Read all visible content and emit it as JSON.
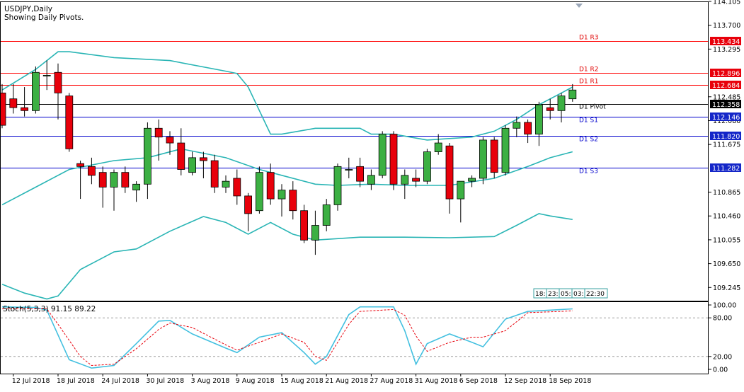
{
  "header": {
    "symbol_line": "USDJPY,Daily",
    "subtitle": "Showing Daily Pivots."
  },
  "price_axis": {
    "ticks": [
      114.105,
      113.7,
      113.295,
      112.485,
      112.08,
      111.675,
      110.865,
      110.46,
      110.055,
      109.65,
      109.245
    ],
    "range": [
      109.02,
      114.105
    ]
  },
  "pivots": [
    {
      "label": "D1 R3",
      "value": 113.434,
      "price_tag": "113.434",
      "color": "#ff0000"
    },
    {
      "label": "D1 R2",
      "value": 112.896,
      "price_tag": "112.896",
      "color": "#ff0000"
    },
    {
      "label": "D1 R1",
      "value": 112.684,
      "price_tag": "112.684",
      "color": "#ff0000"
    },
    {
      "label": "D1 Pivot",
      "value": 112.358,
      "price_tag": "112.358",
      "color": "#000000"
    },
    {
      "label": "D1 S1",
      "value": 112.146,
      "price_tag": "112.146",
      "color": "#0000cc"
    },
    {
      "label": "D1 S2",
      "value": 111.82,
      "price_tag": "111.820",
      "color": "#0000cc"
    },
    {
      "label": "D1 S3",
      "value": 111.282,
      "price_tag": "111.282",
      "color": "#0000cc"
    }
  ],
  "countdown": [
    "18:",
    "23:",
    "05:",
    "03:",
    "22:30"
  ],
  "stochastic": {
    "label": "Stoch(5,3,3) 91.15 89.22",
    "ticks": [
      "100.00",
      "80.00",
      "20.00",
      "0.00"
    ],
    "tick_values": [
      100,
      80,
      20,
      0
    ]
  },
  "date_labels": [
    {
      "text": "12 Jul 2018",
      "index": 1
    },
    {
      "text": "18 Jul 2018",
      "index": 5
    },
    {
      "text": "24 Jul 2018",
      "index": 9
    },
    {
      "text": "30 Jul 2018",
      "index": 13
    },
    {
      "text": "3 Aug 2018",
      "index": 17
    },
    {
      "text": "9 Aug 2018",
      "index": 21
    },
    {
      "text": "15 Aug 2018",
      "index": 25
    },
    {
      "text": "21 Aug 2018",
      "index": 29
    },
    {
      "text": "27 Aug 2018",
      "index": 33
    },
    {
      "text": "31 Aug 2018",
      "index": 37
    },
    {
      "text": "6 Sep 2018",
      "index": 41
    },
    {
      "text": "12 Sep 2018",
      "index": 45
    },
    {
      "text": "18 Sep 2018",
      "index": 49
    }
  ],
  "colors": {
    "bull": "#3cb043",
    "bear": "#e8000b",
    "band": "#2ab5b5",
    "stoch_main": "#43c0e0",
    "stoch_signal": "#e8000b",
    "pivot_tag_bg_red": "#e8000b",
    "pivot_tag_bg_blue": "#1426c8",
    "pivot_tag_bg_black": "#000000"
  },
  "chart_data": {
    "type": "candlestick",
    "series_name": "USDJPY",
    "ohlc": [
      [
        112.55,
        112.7,
        111.95,
        112.0
      ],
      [
        112.45,
        112.7,
        112.2,
        112.3
      ],
      [
        112.3,
        112.65,
        112.15,
        112.25
      ],
      [
        112.25,
        113.0,
        112.2,
        112.9
      ],
      [
        112.85,
        113.1,
        112.6,
        112.85
      ],
      [
        112.9,
        113.05,
        112.1,
        112.55
      ],
      [
        112.5,
        112.55,
        111.55,
        111.6
      ],
      [
        111.35,
        111.4,
        110.75,
        111.3
      ],
      [
        111.3,
        111.45,
        111.0,
        111.15
      ],
      [
        111.2,
        111.3,
        110.6,
        110.95
      ],
      [
        110.95,
        111.25,
        110.55,
        111.2
      ],
      [
        111.2,
        111.3,
        110.85,
        110.95
      ],
      [
        110.9,
        111.05,
        110.7,
        111.0
      ],
      [
        111.0,
        112.05,
        110.75,
        111.95
      ],
      [
        111.95,
        112.1,
        111.4,
        111.8
      ],
      [
        111.8,
        111.9,
        111.5,
        111.7
      ],
      [
        111.7,
        111.95,
        111.15,
        111.25
      ],
      [
        111.2,
        111.55,
        111.15,
        111.45
      ],
      [
        111.45,
        111.55,
        111.1,
        111.4
      ],
      [
        111.4,
        111.5,
        110.85,
        110.95
      ],
      [
        110.95,
        111.15,
        110.85,
        111.05
      ],
      [
        111.1,
        111.25,
        110.65,
        110.8
      ],
      [
        110.8,
        110.85,
        110.2,
        110.5
      ],
      [
        110.55,
        111.3,
        110.5,
        111.2
      ],
      [
        111.2,
        111.35,
        110.65,
        110.75
      ],
      [
        110.75,
        111.0,
        110.45,
        110.9
      ],
      [
        110.9,
        111.05,
        110.4,
        110.55
      ],
      [
        110.55,
        110.65,
        110.0,
        110.05
      ],
      [
        110.05,
        110.55,
        109.8,
        110.3
      ],
      [
        110.3,
        110.75,
        110.2,
        110.65
      ],
      [
        110.65,
        111.35,
        110.55,
        111.3
      ],
      [
        111.25,
        111.45,
        111.1,
        111.25
      ],
      [
        111.3,
        111.45,
        110.95,
        111.05
      ],
      [
        111.0,
        111.25,
        110.9,
        111.15
      ],
      [
        111.15,
        111.9,
        111.1,
        111.85
      ],
      [
        111.85,
        111.9,
        110.9,
        111.0
      ],
      [
        111.0,
        111.25,
        110.75,
        111.15
      ],
      [
        111.1,
        111.25,
        110.95,
        111.05
      ],
      [
        111.05,
        111.6,
        111.0,
        111.55
      ],
      [
        111.55,
        111.85,
        111.5,
        111.7
      ],
      [
        111.65,
        111.7,
        110.5,
        110.75
      ],
      [
        110.75,
        111.05,
        110.35,
        111.05
      ],
      [
        111.05,
        111.15,
        110.95,
        111.1
      ],
      [
        111.1,
        111.8,
        111.0,
        111.75
      ],
      [
        111.75,
        111.8,
        111.1,
        111.2
      ],
      [
        111.2,
        112.0,
        111.15,
        111.95
      ],
      [
        111.95,
        112.15,
        111.8,
        112.05
      ],
      [
        112.05,
        112.1,
        111.7,
        111.85
      ],
      [
        111.85,
        112.4,
        111.65,
        112.35
      ],
      [
        112.3,
        112.45,
        112.1,
        112.25
      ],
      [
        112.25,
        112.55,
        112.05,
        112.5
      ],
      [
        112.45,
        112.7,
        112.4,
        112.6
      ]
    ],
    "bollinger_upper": [
      [
        0,
        112.6
      ],
      [
        3,
        112.95
      ],
      [
        5,
        113.25
      ],
      [
        6,
        113.25
      ],
      [
        10,
        113.15
      ],
      [
        15,
        113.1
      ],
      [
        20,
        112.92
      ],
      [
        21,
        112.88
      ],
      [
        22,
        112.65
      ],
      [
        23,
        112.25
      ],
      [
        24,
        111.85
      ],
      [
        25,
        111.85
      ],
      [
        28,
        111.95
      ],
      [
        32,
        111.95
      ],
      [
        33,
        111.85
      ],
      [
        35,
        111.85
      ],
      [
        38,
        111.75
      ],
      [
        42,
        111.8
      ],
      [
        44,
        111.9
      ],
      [
        46,
        112.1
      ],
      [
        48,
        112.35
      ],
      [
        50,
        112.55
      ],
      [
        51,
        112.65
      ]
    ],
    "bollinger_middle": [
      [
        0,
        110.65
      ],
      [
        3,
        110.95
      ],
      [
        6,
        111.25
      ],
      [
        10,
        111.4
      ],
      [
        13,
        111.45
      ],
      [
        16,
        111.6
      ],
      [
        20,
        111.45
      ],
      [
        23,
        111.25
      ],
      [
        25,
        111.15
      ],
      [
        28,
        111.0
      ],
      [
        30,
        110.98
      ],
      [
        33,
        111.0
      ],
      [
        36,
        110.98
      ],
      [
        40,
        110.98
      ],
      [
        44,
        111.1
      ],
      [
        47,
        111.3
      ],
      [
        49,
        111.45
      ],
      [
        51,
        111.55
      ]
    ],
    "bollinger_lower": [
      [
        0,
        109.3
      ],
      [
        2,
        109.15
      ],
      [
        4,
        109.05
      ],
      [
        5,
        109.1
      ],
      [
        7,
        109.55
      ],
      [
        10,
        109.85
      ],
      [
        12,
        109.9
      ],
      [
        15,
        110.2
      ],
      [
        18,
        110.45
      ],
      [
        20,
        110.35
      ],
      [
        22,
        110.15
      ],
      [
        24,
        110.35
      ],
      [
        26,
        110.15
      ],
      [
        28,
        110.05
      ],
      [
        32,
        110.1
      ],
      [
        36,
        110.1
      ],
      [
        40,
        110.09
      ],
      [
        44,
        110.11
      ],
      [
        46,
        110.3
      ],
      [
        48,
        110.5
      ],
      [
        49,
        110.46
      ],
      [
        51,
        110.4
      ]
    ],
    "stoch_main": [
      [
        0,
        97
      ],
      [
        3,
        96
      ],
      [
        4,
        92
      ],
      [
        6,
        15
      ],
      [
        8,
        2
      ],
      [
        10,
        6
      ],
      [
        12,
        40
      ],
      [
        14,
        75
      ],
      [
        15,
        76
      ],
      [
        17,
        55
      ],
      [
        20,
        33
      ],
      [
        21,
        26
      ],
      [
        23,
        50
      ],
      [
        25,
        57
      ],
      [
        27,
        26
      ],
      [
        28,
        8
      ],
      [
        29,
        20
      ],
      [
        31,
        85
      ],
      [
        32,
        97
      ],
      [
        35,
        97
      ],
      [
        36,
        60
      ],
      [
        37,
        8
      ],
      [
        38,
        40
      ],
      [
        40,
        55
      ],
      [
        42,
        42
      ],
      [
        43,
        35
      ],
      [
        45,
        78
      ],
      [
        47,
        90
      ],
      [
        50,
        93
      ],
      [
        51,
        94
      ]
    ],
    "stoch_signal": [
      [
        0,
        94
      ],
      [
        4,
        94
      ],
      [
        5,
        70
      ],
      [
        7,
        20
      ],
      [
        8,
        6
      ],
      [
        10,
        8
      ],
      [
        12,
        32
      ],
      [
        14,
        62
      ],
      [
        15,
        72
      ],
      [
        17,
        65
      ],
      [
        20,
        38
      ],
      [
        21,
        30
      ],
      [
        23,
        42
      ],
      [
        25,
        55
      ],
      [
        27,
        42
      ],
      [
        28,
        20
      ],
      [
        29,
        14
      ],
      [
        31,
        70
      ],
      [
        32,
        90
      ],
      [
        35,
        93
      ],
      [
        36,
        84
      ],
      [
        37,
        52
      ],
      [
        38,
        28
      ],
      [
        40,
        42
      ],
      [
        42,
        50
      ],
      [
        43,
        50
      ],
      [
        45,
        60
      ],
      [
        47,
        88
      ],
      [
        50,
        90
      ],
      [
        51,
        91
      ]
    ]
  }
}
